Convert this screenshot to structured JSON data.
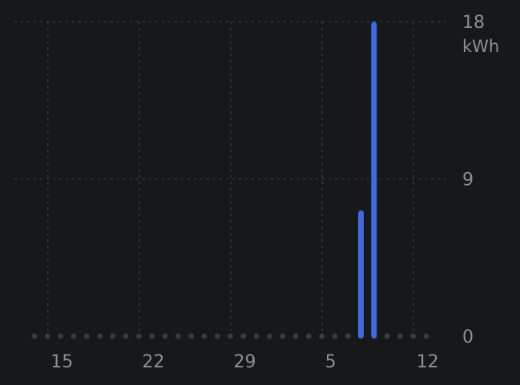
{
  "chart_data": {
    "type": "bar",
    "y_unit": "kWh",
    "y_ticks": [
      0,
      9,
      18
    ],
    "ylim": [
      0,
      18
    ],
    "x_tick_labels": [
      "15",
      "22",
      "29",
      "5",
      "12"
    ],
    "x_tick_day_index": [
      1,
      8,
      15,
      22,
      29
    ],
    "day_count": 31,
    "categories": [
      "14",
      "15",
      "16",
      "17",
      "18",
      "19",
      "20",
      "21",
      "22",
      "23",
      "24",
      "25",
      "26",
      "27",
      "28",
      "29",
      "30",
      "31",
      "1",
      "2",
      "3",
      "4",
      "5",
      "6",
      "7",
      "8",
      "9",
      "10",
      "11",
      "12",
      "13"
    ],
    "values": [
      0,
      0,
      0,
      0,
      0,
      0,
      0,
      0,
      0,
      0,
      0,
      0,
      0,
      0,
      0,
      0,
      0,
      0,
      0,
      0,
      0,
      0,
      0,
      0,
      0,
      7.2,
      18,
      0,
      0,
      0,
      0
    ],
    "grid": true,
    "colors": {
      "bar": "#3d6ae0",
      "grid": "#3c3d41",
      "empty_dot": "#3a3b3f",
      "text": "#8e8e93"
    }
  }
}
